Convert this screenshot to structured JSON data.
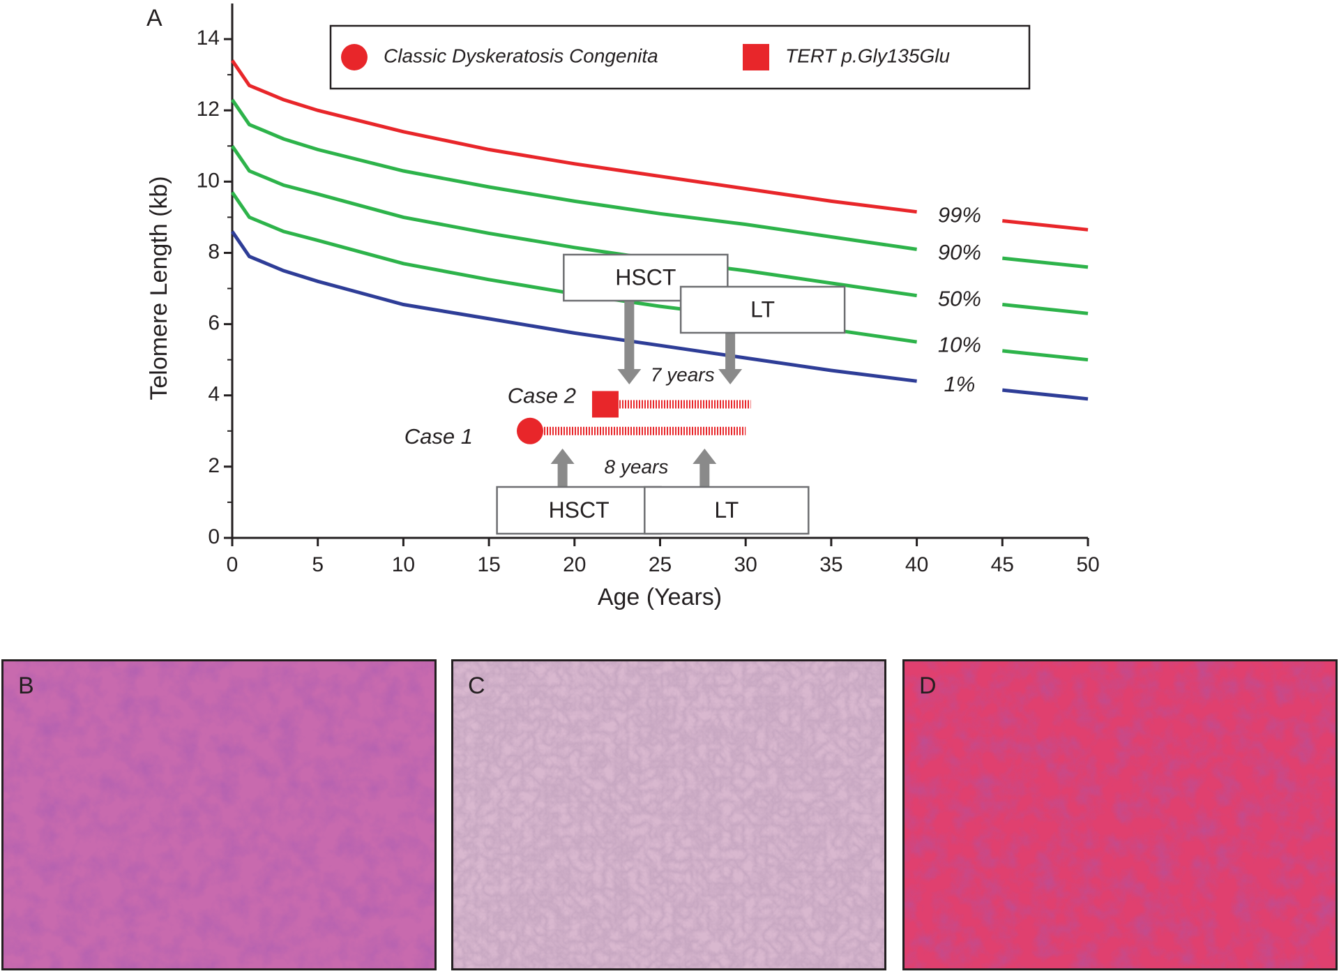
{
  "chart_data": {
    "type": "line",
    "panel_label": "A",
    "y_label": "Telomere Length (kb)",
    "x_label": "Age (Years)",
    "xlim": [
      0,
      50
    ],
    "ylim": [
      0,
      15
    ],
    "xticks": [
      0,
      5,
      10,
      15,
      20,
      25,
      30,
      35,
      40,
      45,
      50
    ],
    "yticks": [
      0,
      2,
      4,
      6,
      8,
      10,
      12,
      14
    ],
    "x": [
      0,
      1,
      2,
      3,
      5,
      10,
      15,
      20,
      25,
      30,
      35,
      40,
      42.5,
      45,
      50
    ],
    "series": [
      {
        "name": "99%",
        "color": "#e8262a",
        "values": [
          13.4,
          12.7,
          12.5,
          12.3,
          12.0,
          11.4,
          10.9,
          10.5,
          10.15,
          9.8,
          9.45,
          9.15,
          null,
          8.9,
          8.65
        ]
      },
      {
        "name": "90%",
        "color": "#2db34a",
        "values": [
          12.3,
          11.6,
          11.4,
          11.2,
          10.9,
          10.3,
          9.85,
          9.45,
          9.1,
          8.8,
          8.45,
          8.1,
          null,
          7.85,
          7.6
        ]
      },
      {
        "name": "50%",
        "color": "#2db34a",
        "values": [
          11.0,
          10.3,
          10.1,
          9.9,
          9.65,
          9.0,
          8.55,
          8.15,
          7.8,
          7.5,
          7.15,
          6.8,
          null,
          6.55,
          6.3
        ]
      },
      {
        "name": "10%",
        "color": "#2db34a",
        "values": [
          9.7,
          9.0,
          8.8,
          8.6,
          8.35,
          7.7,
          7.25,
          6.85,
          6.5,
          6.2,
          5.85,
          5.5,
          null,
          5.25,
          5.0
        ]
      },
      {
        "name": "1%",
        "color": "#2e3d97",
        "values": [
          8.6,
          7.9,
          7.7,
          7.5,
          7.2,
          6.55,
          6.15,
          5.75,
          5.4,
          5.05,
          4.7,
          4.4,
          null,
          4.15,
          3.9
        ]
      }
    ],
    "legend": [
      {
        "name": "Classic Dyskeratosis Congenita",
        "marker": "circle",
        "color": "#e8262a"
      },
      {
        "name": "TERT p.Gly135Glu",
        "marker": "square",
        "color": "#e8262a"
      }
    ],
    "cases": [
      {
        "name": "Case 1",
        "marker": "circle",
        "age": 17.4,
        "telomere": 3.0,
        "followup_to": 30,
        "interval": "8 years",
        "transplants": [
          {
            "label": "HSCT",
            "age": 19.3
          },
          {
            "label": "LT",
            "age": 27.6
          }
        ]
      },
      {
        "name": "Case 2",
        "marker": "square",
        "age": 21.8,
        "telomere": 3.75,
        "followup_to": 30.3,
        "interval": "7 years",
        "transplants": [
          {
            "label": "HSCT",
            "age": 23.2
          },
          {
            "label": "LT",
            "age": 29.1
          }
        ]
      }
    ]
  },
  "panels": [
    {
      "label": "B"
    },
    {
      "label": "C"
    },
    {
      "label": "D"
    }
  ]
}
